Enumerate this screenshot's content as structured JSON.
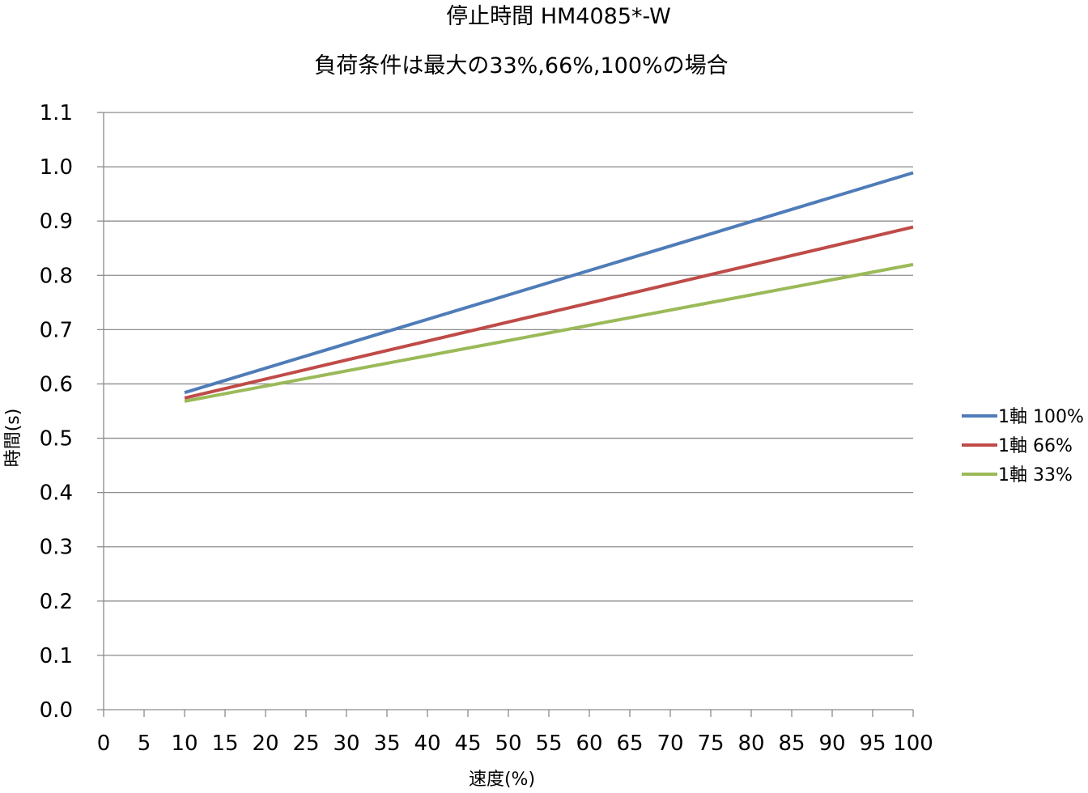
{
  "chart_data": {
    "type": "line",
    "title": "停止時間 HM4085*-W",
    "subtitle": "負荷条件は最大の33%,66%,100%の場合",
    "xlabel": "速度(%)",
    "ylabel": "時間(s)",
    "xlim": [
      0,
      100
    ],
    "ylim": [
      0.0,
      1.1
    ],
    "x_ticks": [
      "0",
      "5",
      "10",
      "15",
      "20",
      "25",
      "30",
      "35",
      "40",
      "45",
      "50",
      "55",
      "60",
      "65",
      "70",
      "75",
      "80",
      "85",
      "90",
      "95",
      "100"
    ],
    "y_ticks": [
      "0.0",
      "0.1",
      "0.2",
      "0.3",
      "0.4",
      "0.5",
      "0.6",
      "0.7",
      "0.8",
      "0.9",
      "1.0",
      "1.1"
    ],
    "grid": "horizontal",
    "legend_position": "right",
    "series": [
      {
        "name": "1軸 100%",
        "color": "#4f7cb8",
        "x": [
          10,
          100
        ],
        "y": [
          0.584,
          0.989
        ]
      },
      {
        "name": "1軸 66%",
        "color": "#bf4b48",
        "x": [
          10,
          100
        ],
        "y": [
          0.574,
          0.889
        ]
      },
      {
        "name": "1軸 33%",
        "color": "#9aba58",
        "x": [
          10,
          100
        ],
        "y": [
          0.568,
          0.82
        ]
      }
    ]
  }
}
